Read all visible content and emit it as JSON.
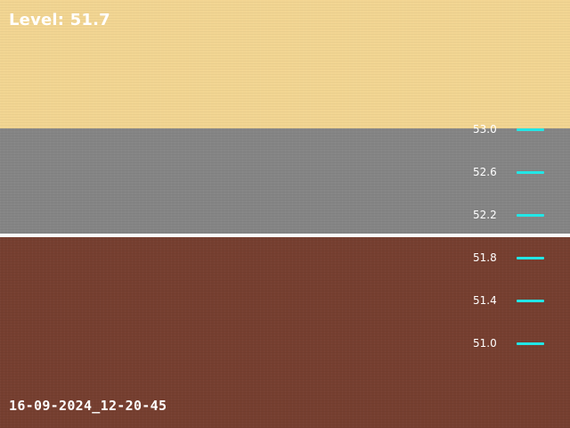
{
  "overlay": {
    "level_text": "Level: 51.7",
    "timestamp_text": "16-09-2024_12-20-45"
  },
  "scale": {
    "tick_color": "#22e6e6",
    "labels": [
      "53.0",
      "52.6",
      "52.2",
      "51.8",
      "51.4",
      "51.0"
    ]
  },
  "colors": {
    "top_band": "#f2d592",
    "middle_band": "#858585",
    "bottom_band": "#763f30",
    "waterline": "#ffffff"
  },
  "level_value": 51.7
}
